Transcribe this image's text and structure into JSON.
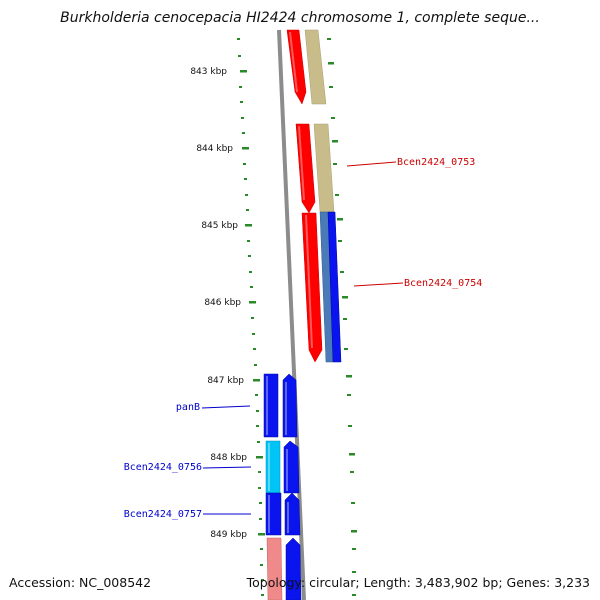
{
  "header": {
    "title": "Burkholderia cenocepacia HI2424 chromosome 1, complete seque..."
  },
  "footer": {
    "accession": "Accession: NC_008542",
    "summary": "Topology: circular; Length: 3,483,902 bp; Genes: 3,233"
  },
  "map": {
    "tick_labels": [
      "843 kbp",
      "844 kbp",
      "845 kbp",
      "846 kbp",
      "847 kbp",
      "848 kbp",
      "849 kbp"
    ],
    "gene_labels": [
      {
        "text": "Bcen2424_0753",
        "color": "#cc0000"
      },
      {
        "text": "Bcen2424_0754",
        "color": "#cc0000"
      },
      {
        "text": "panB",
        "color": "#0000cc"
      },
      {
        "text": "Bcen2424_0756",
        "color": "#0000cc"
      },
      {
        "text": "Bcen2424_0757",
        "color": "#0000cc"
      }
    ],
    "colors": {
      "axis": "#8c8c8c",
      "tick": "#2a8a2a",
      "red": "#ff0000",
      "khaki": "#c8bd8a",
      "blue": "#0a14ef",
      "steel": "#4a7bb8",
      "cyan": "#00c4f5",
      "pink": "#f08a8a"
    }
  }
}
